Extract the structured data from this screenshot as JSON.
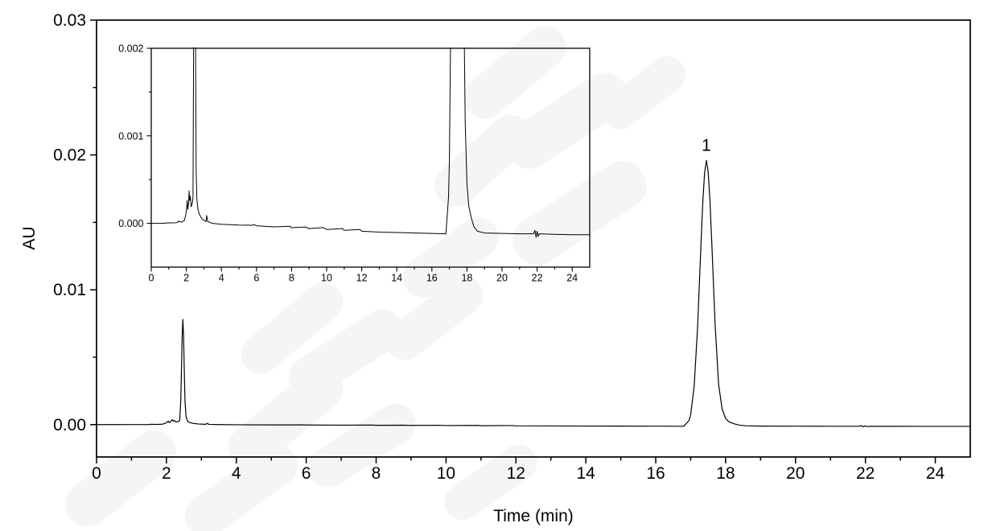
{
  "figure": {
    "background_color": "#ffffff",
    "trace_color": "#000000",
    "axis_color": "#000000",
    "text_color": "#000000",
    "watermark_color": "#f5f5f5"
  },
  "chart_data": {
    "type": "line",
    "title": "",
    "xlabel": "Time (min)",
    "ylabel": "AU",
    "grid": false,
    "legend": "none",
    "description": "HPLC chromatogram with zoomed inset; single analyte peak labeled 1 at ~17.45 min (~0.0196 AU) and solvent-front spike at ~2.47 min (~0.0078 AU)",
    "annotations": [
      {
        "label": "1",
        "x": 17.45,
        "y": 0.0196
      }
    ],
    "series": [
      {
        "name": "chromatogram",
        "points": [
          [
            0,
            0
          ],
          [
            0.6,
            0
          ],
          [
            1.0,
            5e-06
          ],
          [
            1.3,
            5e-06
          ],
          [
            1.5,
            1e-05
          ],
          [
            1.56,
            2.8e-05
          ],
          [
            1.63,
            1.8e-05
          ],
          [
            1.75,
            1.5e-05
          ],
          [
            1.88,
            3e-05
          ],
          [
            1.97,
            0.0001
          ],
          [
            2.02,
            0.00018
          ],
          [
            2.05,
            0.00026
          ],
          [
            2.08,
            0.00016
          ],
          [
            2.12,
            0.00021
          ],
          [
            2.16,
            0.00037
          ],
          [
            2.19,
            0.00026
          ],
          [
            2.23,
            0.00031
          ],
          [
            2.27,
            0.00019
          ],
          [
            2.31,
            0.00021
          ],
          [
            2.35,
            0.00024
          ],
          [
            2.38,
            0.0003
          ],
          [
            2.41,
            0.0018
          ],
          [
            2.43,
            0.0041
          ],
          [
            2.45,
            0.0066
          ],
          [
            2.47,
            0.0078
          ],
          [
            2.49,
            0.0066
          ],
          [
            2.51,
            0.0041
          ],
          [
            2.53,
            0.0018
          ],
          [
            2.56,
            0.0006
          ],
          [
            2.6,
            0.00028
          ],
          [
            2.66,
            0.00016
          ],
          [
            2.75,
            0.0001
          ],
          [
            2.9,
            5e-05
          ],
          [
            3.05,
            3e-05
          ],
          [
            3.12,
            2e-05
          ],
          [
            3.16,
            9e-05
          ],
          [
            3.22,
            2e-05
          ],
          [
            3.5,
            0
          ],
          [
            4,
            -1e-05
          ],
          [
            5,
            -2e-05
          ],
          [
            5.75,
            -2.2e-05
          ],
          [
            5.85,
            -1.2e-05
          ],
          [
            6,
            -2.8e-05
          ],
          [
            7,
            -4e-05
          ],
          [
            7.9,
            -3.3e-05
          ],
          [
            8,
            -5e-05
          ],
          [
            8.8,
            -4.2e-05
          ],
          [
            9,
            -6e-05
          ],
          [
            9.8,
            -4.8e-05
          ],
          [
            10,
            -7e-05
          ],
          [
            10.9,
            -6e-05
          ],
          [
            11,
            -8e-05
          ],
          [
            11.9,
            -7e-05
          ],
          [
            12,
            -9e-05
          ],
          [
            13,
            -0.0001
          ],
          [
            14,
            -0.000105
          ],
          [
            15,
            -0.00011
          ],
          [
            16,
            -0.000115
          ],
          [
            16.8,
            -0.00012
          ],
          [
            16.95,
            0.0003
          ],
          [
            17.0,
            0.00074
          ],
          [
            17.1,
            0.00284
          ],
          [
            17.2,
            0.00735
          ],
          [
            17.3,
            0.01373
          ],
          [
            17.35,
            0.01668
          ],
          [
            17.4,
            0.01874
          ],
          [
            17.45,
            0.0196
          ],
          [
            17.5,
            0.01874
          ],
          [
            17.55,
            0.01668
          ],
          [
            17.6,
            0.01373
          ],
          [
            17.7,
            0.00735
          ],
          [
            17.8,
            0.00296
          ],
          [
            17.9,
            0.00115
          ],
          [
            18.0,
            0.00045
          ],
          [
            18.1,
            0.0002
          ],
          [
            18.25,
            6e-05
          ],
          [
            18.4,
            -4e-05
          ],
          [
            18.6,
            -9e-05
          ],
          [
            19,
            -0.00011
          ],
          [
            20,
            -0.000115
          ],
          [
            21,
            -0.00012
          ],
          [
            21.8,
            -0.00012
          ],
          [
            21.88,
            -8e-05
          ],
          [
            21.94,
            -0.00016
          ],
          [
            22.0,
            -9e-05
          ],
          [
            22.06,
            -0.00015
          ],
          [
            22.12,
            -0.00012
          ],
          [
            23,
            -0.000125
          ],
          [
            24,
            -0.00013
          ],
          [
            25,
            -0.00013
          ]
        ]
      }
    ],
    "main_view": {
      "xlim": [
        0,
        25
      ],
      "ylim": [
        -0.0024,
        0.03
      ],
      "x_major_ticks": [
        0,
        2,
        4,
        6,
        8,
        10,
        12,
        14,
        16,
        18,
        20,
        22,
        24
      ],
      "x_tick_labels": [
        "0",
        "2",
        "4",
        "6",
        "8",
        "10",
        "12",
        "14",
        "16",
        "18",
        "20",
        "22",
        "24"
      ],
      "x_minor_ticks": [
        1,
        3,
        5,
        7,
        9,
        11,
        13,
        15,
        17,
        19,
        21,
        23
      ],
      "y_major_ticks": [
        0,
        0.01,
        0.02,
        0.03
      ],
      "y_tick_labels": [
        "0.00",
        "0.01",
        "0.02",
        "0.03"
      ],
      "y_minor_ticks": [
        0.005,
        0.015,
        0.025
      ]
    },
    "inset_view": {
      "xlim": [
        0,
        25
      ],
      "ylim": [
        -0.0005,
        0.002
      ],
      "x_major_ticks": [
        0,
        2,
        4,
        6,
        8,
        10,
        12,
        14,
        16,
        18,
        20,
        22,
        24
      ],
      "x_tick_labels": [
        "0",
        "2",
        "4",
        "6",
        "8",
        "10",
        "12",
        "14",
        "16",
        "18",
        "20",
        "22",
        "24"
      ],
      "x_minor_ticks": [
        1,
        3,
        5,
        7,
        9,
        11,
        13,
        15,
        17,
        19,
        21,
        23
      ],
      "y_major_ticks": [
        0,
        0.001,
        0.002
      ],
      "y_tick_labels": [
        "0.000",
        "0.001",
        "0.002"
      ],
      "y_minor_ticks": [
        0.0005,
        0.0015
      ]
    }
  }
}
